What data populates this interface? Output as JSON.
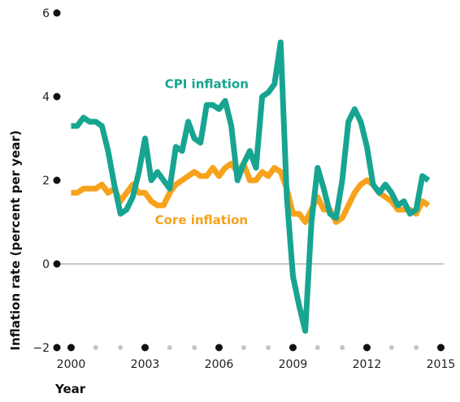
{
  "chart_data": {
    "type": "line",
    "title": "",
    "xlabel": "Year",
    "ylabel": "Inflation rate (percent per year)",
    "xlim": [
      2000,
      2015
    ],
    "ylim": [
      -2,
      6
    ],
    "x_ticks": [
      {
        "value": 2000,
        "label": "2000"
      },
      {
        "value": 2003,
        "label": "2003"
      },
      {
        "value": 2006,
        "label": "2006"
      },
      {
        "value": 2009,
        "label": "2009"
      },
      {
        "value": 2012,
        "label": "2012"
      },
      {
        "value": 2015,
        "label": "2015"
      }
    ],
    "y_ticks": [
      {
        "value": 6,
        "label": "6"
      },
      {
        "value": 4,
        "label": "4"
      },
      {
        "value": 2,
        "label": "2"
      },
      {
        "value": 0,
        "label": "0"
      },
      {
        "value": -2,
        "label": "−2"
      }
    ],
    "grid": false,
    "zero_line": true,
    "series": [
      {
        "name": "CPI inflation",
        "color": "#17a592",
        "label_at": [
          2003.8,
          4.2
        ],
        "points": [
          [
            2000.0,
            3.3
          ],
          [
            2000.25,
            3.3
          ],
          [
            2000.5,
            3.5
          ],
          [
            2000.75,
            3.4
          ],
          [
            2001.0,
            3.4
          ],
          [
            2001.25,
            3.3
          ],
          [
            2001.5,
            2.7
          ],
          [
            2001.75,
            1.9
          ],
          [
            2002.0,
            1.2
          ],
          [
            2002.25,
            1.3
          ],
          [
            2002.5,
            1.6
          ],
          [
            2002.75,
            2.2
          ],
          [
            2003.0,
            3.0
          ],
          [
            2003.25,
            2.0
          ],
          [
            2003.5,
            2.2
          ],
          [
            2003.75,
            2.0
          ],
          [
            2004.0,
            1.8
          ],
          [
            2004.25,
            2.8
          ],
          [
            2004.5,
            2.7
          ],
          [
            2004.75,
            3.4
          ],
          [
            2005.0,
            3.0
          ],
          [
            2005.25,
            2.9
          ],
          [
            2005.5,
            3.8
          ],
          [
            2005.75,
            3.8
          ],
          [
            2006.0,
            3.7
          ],
          [
            2006.25,
            3.9
          ],
          [
            2006.5,
            3.3
          ],
          [
            2006.75,
            2.0
          ],
          [
            2007.0,
            2.4
          ],
          [
            2007.25,
            2.7
          ],
          [
            2007.5,
            2.3
          ],
          [
            2007.75,
            4.0
          ],
          [
            2008.0,
            4.1
          ],
          [
            2008.25,
            4.3
          ],
          [
            2008.5,
            5.3
          ],
          [
            2008.75,
            1.6
          ],
          [
            2009.0,
            -0.3
          ],
          [
            2009.25,
            -1.0
          ],
          [
            2009.5,
            -1.6
          ],
          [
            2009.75,
            1.0
          ],
          [
            2010.0,
            2.3
          ],
          [
            2010.25,
            1.8
          ],
          [
            2010.5,
            1.2
          ],
          [
            2010.75,
            1.1
          ],
          [
            2011.0,
            2.0
          ],
          [
            2011.25,
            3.4
          ],
          [
            2011.5,
            3.7
          ],
          [
            2011.75,
            3.4
          ],
          [
            2012.0,
            2.8
          ],
          [
            2012.25,
            1.9
          ],
          [
            2012.5,
            1.7
          ],
          [
            2012.75,
            1.9
          ],
          [
            2013.0,
            1.7
          ],
          [
            2013.25,
            1.4
          ],
          [
            2013.5,
            1.5
          ],
          [
            2013.75,
            1.2
          ],
          [
            2014.0,
            1.3
          ],
          [
            2014.25,
            2.1
          ],
          [
            2014.5,
            2.0
          ]
        ]
      },
      {
        "name": "Core inflation",
        "color": "#f7a21b",
        "label_at": [
          2003.4,
          0.95
        ],
        "points": [
          [
            2000.0,
            1.7
          ],
          [
            2000.25,
            1.7
          ],
          [
            2000.5,
            1.8
          ],
          [
            2000.75,
            1.8
          ],
          [
            2001.0,
            1.8
          ],
          [
            2001.25,
            1.9
          ],
          [
            2001.5,
            1.7
          ],
          [
            2001.75,
            1.8
          ],
          [
            2002.0,
            1.5
          ],
          [
            2002.25,
            1.7
          ],
          [
            2002.5,
            1.9
          ],
          [
            2002.75,
            1.7
          ],
          [
            2003.0,
            1.7
          ],
          [
            2003.25,
            1.5
          ],
          [
            2003.5,
            1.4
          ],
          [
            2003.75,
            1.4
          ],
          [
            2004.0,
            1.7
          ],
          [
            2004.25,
            1.9
          ],
          [
            2004.5,
            2.0
          ],
          [
            2004.75,
            2.1
          ],
          [
            2005.0,
            2.2
          ],
          [
            2005.25,
            2.1
          ],
          [
            2005.5,
            2.1
          ],
          [
            2005.75,
            2.3
          ],
          [
            2006.0,
            2.1
          ],
          [
            2006.25,
            2.3
          ],
          [
            2006.5,
            2.4
          ],
          [
            2006.75,
            2.2
          ],
          [
            2007.0,
            2.4
          ],
          [
            2007.25,
            2.0
          ],
          [
            2007.5,
            2.0
          ],
          [
            2007.75,
            2.2
          ],
          [
            2008.0,
            2.1
          ],
          [
            2008.25,
            2.3
          ],
          [
            2008.5,
            2.2
          ],
          [
            2008.75,
            1.8
          ],
          [
            2009.0,
            1.2
          ],
          [
            2009.25,
            1.2
          ],
          [
            2009.5,
            1.0
          ],
          [
            2009.75,
            1.3
          ],
          [
            2010.0,
            1.6
          ],
          [
            2010.25,
            1.3
          ],
          [
            2010.5,
            1.3
          ],
          [
            2010.75,
            1.0
          ],
          [
            2011.0,
            1.1
          ],
          [
            2011.25,
            1.4
          ],
          [
            2011.5,
            1.7
          ],
          [
            2011.75,
            1.9
          ],
          [
            2012.0,
            2.0
          ],
          [
            2012.25,
            1.9
          ],
          [
            2012.5,
            1.7
          ],
          [
            2012.75,
            1.6
          ],
          [
            2013.0,
            1.5
          ],
          [
            2013.25,
            1.3
          ],
          [
            2013.5,
            1.3
          ],
          [
            2013.75,
            1.3
          ],
          [
            2014.0,
            1.2
          ],
          [
            2014.25,
            1.5
          ],
          [
            2014.5,
            1.4
          ]
        ]
      }
    ]
  }
}
